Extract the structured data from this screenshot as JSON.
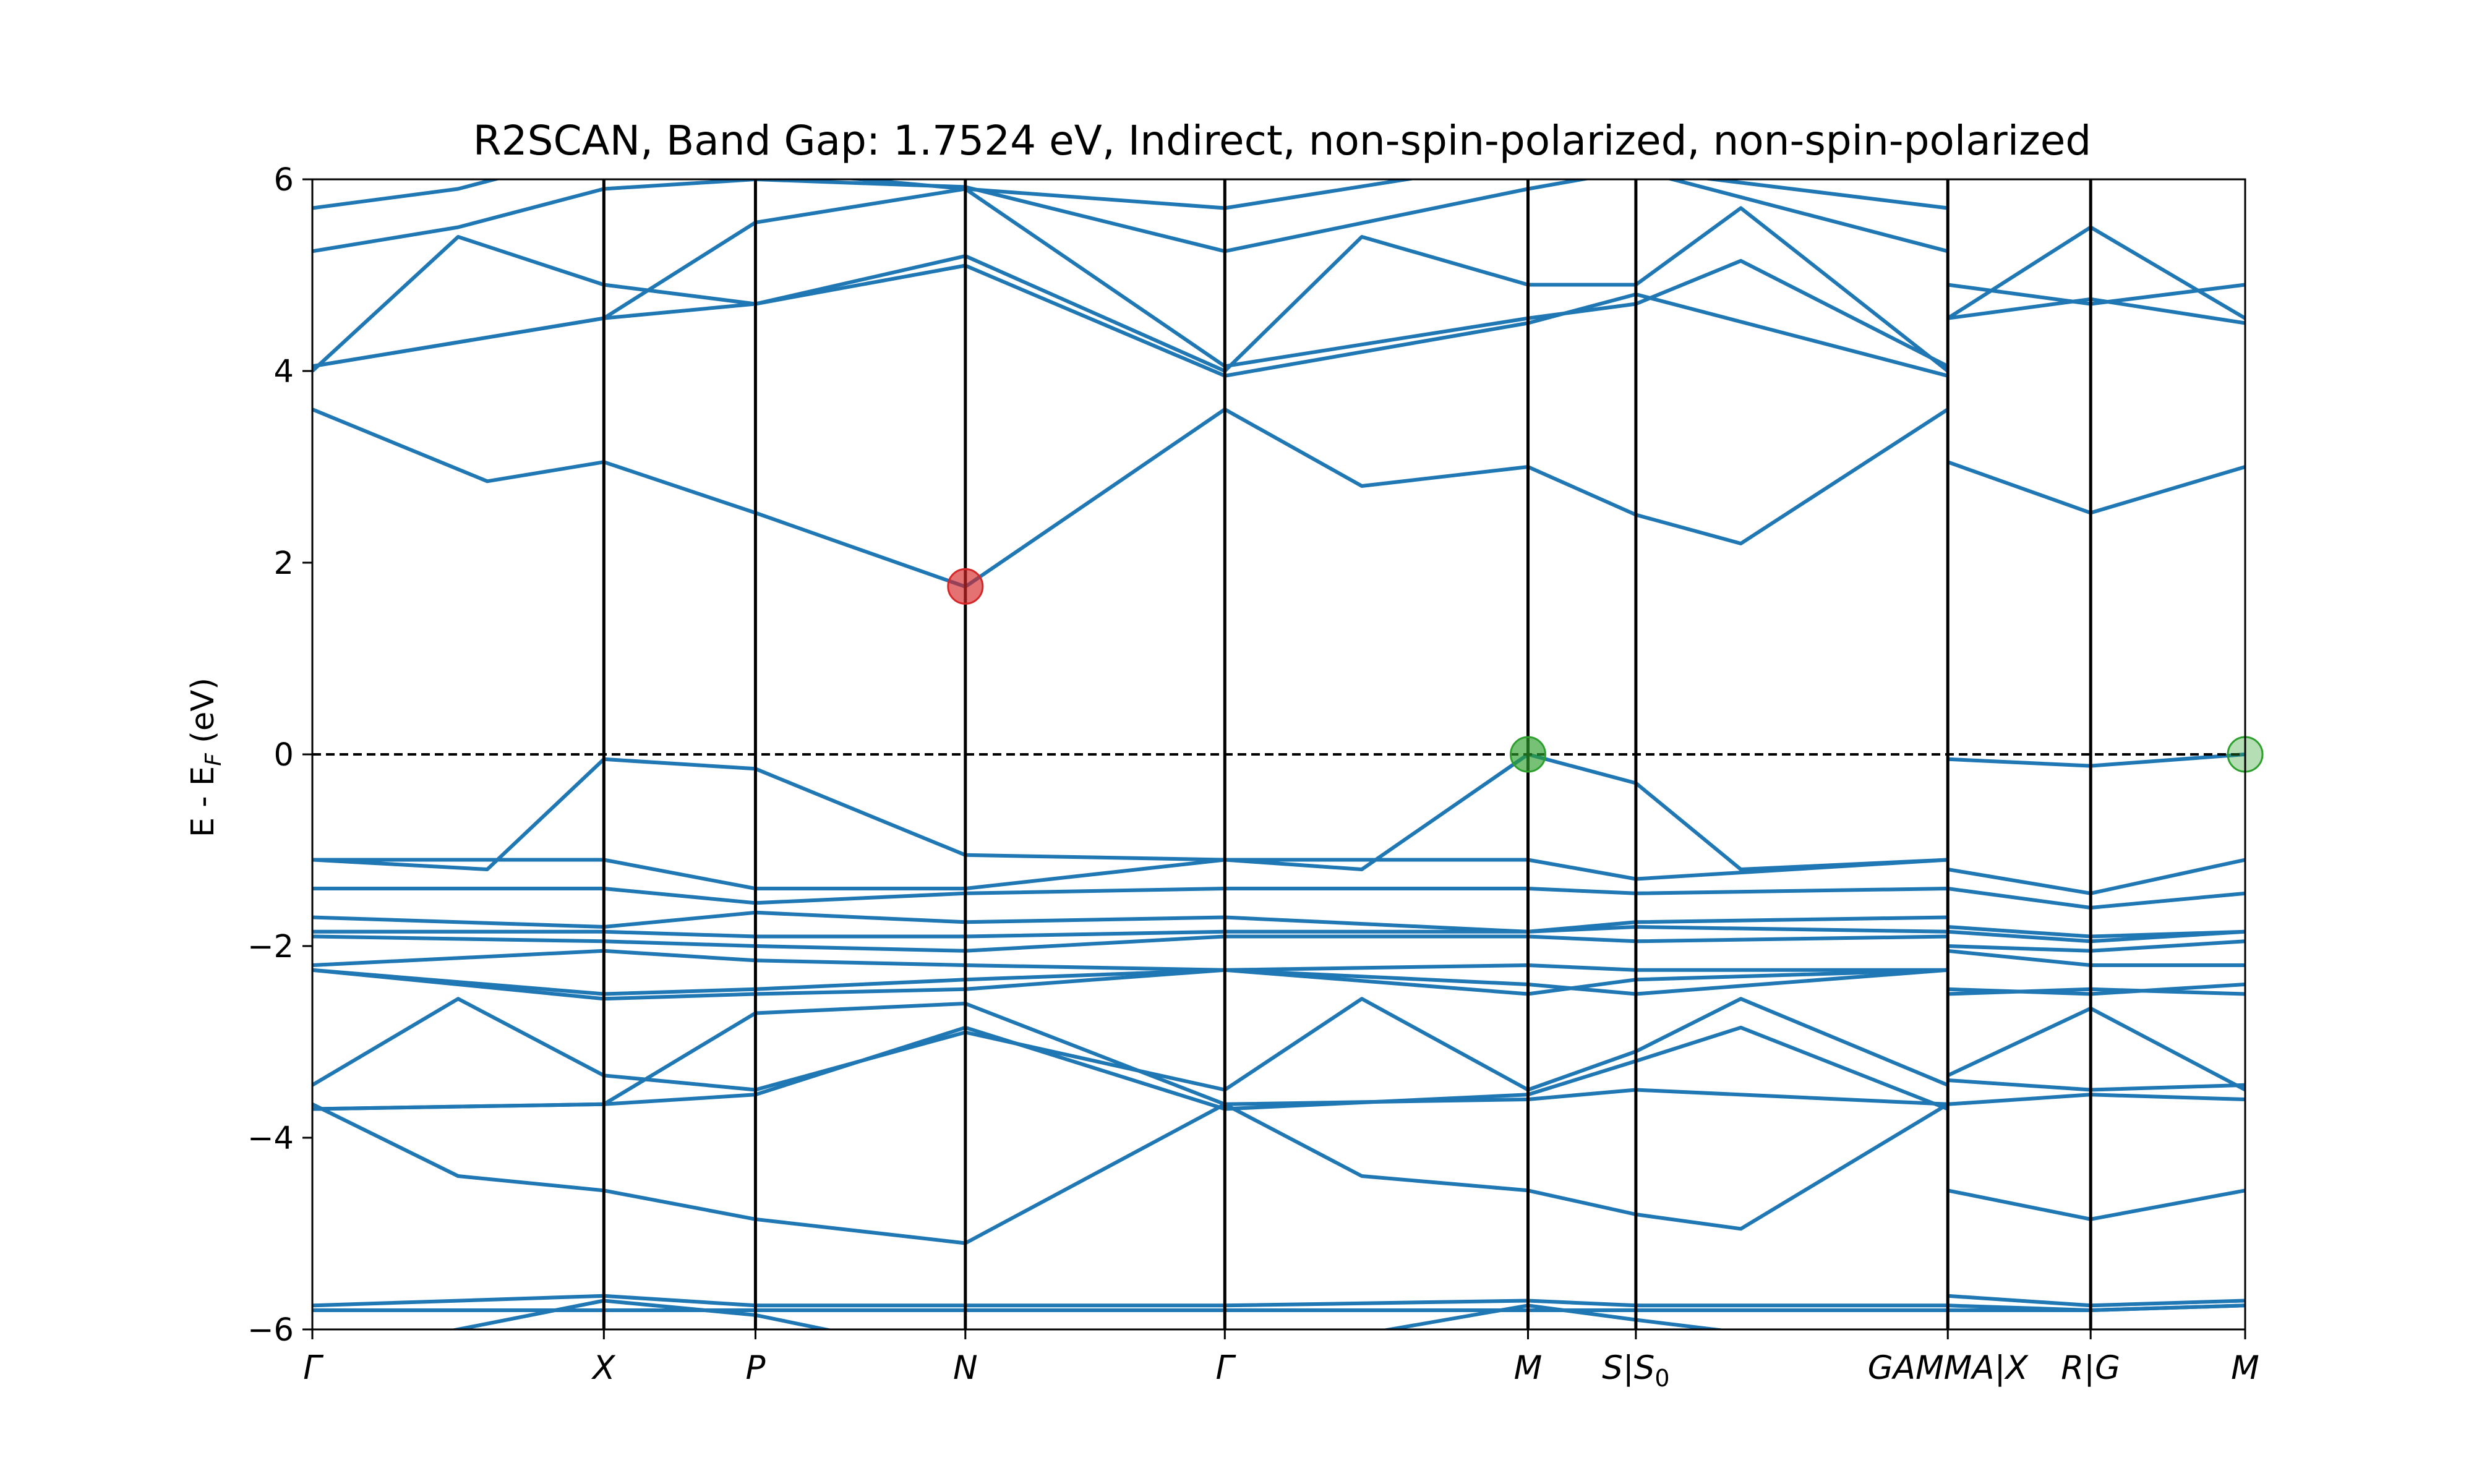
{
  "chart_data": {
    "type": "line",
    "title": "R2SCAN, Band Gap: 1.7524 eV, Indirect, non-spin-polarized, non-spin-polarized",
    "ylabel": "E - E_F (eV)",
    "ylim": [
      -6,
      6
    ],
    "yticks": [
      -6,
      -4,
      -2,
      0,
      2,
      4,
      6
    ],
    "ytick_labels": [
      "−6",
      "−4",
      "−2",
      "0",
      "2",
      "4",
      "6"
    ],
    "fermi_level": 0,
    "kpath": {
      "ticks": [
        {
          "pos": 0.0,
          "label": "Γ"
        },
        {
          "pos": 1.0,
          "label": "X"
        },
        {
          "pos": 1.52,
          "label": "P"
        },
        {
          "pos": 2.24,
          "label": "N"
        },
        {
          "pos": 3.13,
          "label": "Γ"
        },
        {
          "pos": 4.17,
          "label": "M"
        },
        {
          "pos": 4.54,
          "label": "S|S0"
        },
        {
          "pos": 5.61,
          "label": "GAMMA|X"
        },
        {
          "pos": 6.1,
          "label": "R|G"
        },
        {
          "pos": 6.63,
          "label": "M"
        }
      ]
    },
    "cbm": {
      "k": 2.24,
      "e": 1.7524
    },
    "vbm": [
      {
        "k": 4.17,
        "e": 0.0
      },
      {
        "k": 6.63,
        "e": 0.0
      }
    ],
    "bands_colour": "#1f77b4",
    "cbm_colour": "#d62728",
    "vbm_colour": "#2ca02c",
    "bands": [
      [
        [
          0,
          5.7
        ],
        [
          0.5,
          5.9
        ],
        [
          1,
          6.3
        ],
        [
          1.52,
          6.1
        ],
        [
          2.24,
          5.9
        ],
        [
          3.13,
          5.7
        ],
        [
          4.17,
          6.2
        ],
        [
          4.54,
          6.1
        ],
        [
          5.61,
          5.7
        ]
      ],
      [
        [
          0,
          5.25
        ],
        [
          0.5,
          5.5
        ],
        [
          1,
          5.9
        ],
        [
          1.52,
          6.0
        ],
        [
          2.24,
          5.92
        ],
        [
          3.13,
          5.25
        ],
        [
          4.17,
          5.9
        ],
        [
          4.54,
          6.1
        ],
        [
          5.61,
          5.25
        ]
      ],
      [
        [
          0,
          4.0
        ],
        [
          0.5,
          5.4
        ],
        [
          1,
          4.9
        ],
        [
          1.52,
          4.7
        ],
        [
          2.24,
          5.2
        ],
        [
          3.13,
          4.0
        ],
        [
          3.6,
          5.4
        ],
        [
          4.17,
          4.9
        ],
        [
          4.54,
          4.9
        ],
        [
          4.9,
          5.7
        ],
        [
          5.61,
          4.0
        ],
        [
          5.61,
          4.9
        ],
        [
          6.1,
          4.7
        ],
        [
          6.63,
          4.9
        ]
      ],
      [
        [
          0,
          4.05
        ],
        [
          0.5,
          4.3
        ],
        [
          1,
          4.55
        ],
        [
          1.52,
          5.55
        ],
        [
          2.24,
          5.9
        ],
        [
          3.13,
          4.05
        ],
        [
          4.17,
          4.55
        ],
        [
          4.54,
          4.7
        ],
        [
          4.9,
          5.15
        ],
        [
          5.61,
          4.05
        ],
        [
          5.61,
          4.55
        ],
        [
          6.1,
          5.5
        ],
        [
          6.63,
          4.55
        ]
      ],
      [
        [
          0,
          4.05
        ],
        [
          0.5,
          4.3
        ],
        [
          1,
          4.55
        ],
        [
          1.52,
          4.7
        ],
        [
          2.24,
          5.1
        ],
        [
          3.13,
          3.95
        ],
        [
          4.17,
          4.5
        ],
        [
          4.54,
          4.8
        ],
        [
          5.61,
          3.95
        ],
        [
          5.61,
          4.55
        ],
        [
          6.1,
          4.75
        ],
        [
          6.63,
          4.5
        ]
      ],
      [
        [
          0,
          3.6
        ],
        [
          0.6,
          2.85
        ],
        [
          1,
          3.05
        ],
        [
          1.52,
          2.52
        ],
        [
          2.24,
          1.75
        ],
        [
          3.13,
          3.6
        ],
        [
          3.6,
          2.8
        ],
        [
          4.17,
          3.0
        ],
        [
          4.54,
          2.5
        ],
        [
          4.9,
          2.2
        ],
        [
          5.61,
          3.6
        ],
        [
          5.61,
          3.05
        ],
        [
          6.1,
          2.52
        ],
        [
          6.63,
          3.0
        ]
      ],
      [
        [
          0,
          -1.1
        ],
        [
          0.6,
          -1.2
        ],
        [
          1,
          -0.05
        ],
        [
          1.52,
          -0.15
        ],
        [
          2.24,
          -1.05
        ],
        [
          3.13,
          -1.1
        ],
        [
          3.6,
          -1.2
        ],
        [
          4.17,
          0.0
        ],
        [
          4.54,
          -0.3
        ],
        [
          4.9,
          -1.2
        ],
        [
          5.61,
          -1.1
        ],
        [
          5.61,
          -0.05
        ],
        [
          6.1,
          -0.12
        ],
        [
          6.63,
          0.0
        ]
      ],
      [
        [
          0,
          -1.1
        ],
        [
          1,
          -1.1
        ],
        [
          1.52,
          -1.4
        ],
        [
          2.24,
          -1.4
        ],
        [
          3.13,
          -1.1
        ],
        [
          4.17,
          -1.1
        ],
        [
          4.54,
          -1.3
        ],
        [
          5.61,
          -1.1
        ],
        [
          5.61,
          -1.2
        ],
        [
          6.1,
          -1.45
        ],
        [
          6.63,
          -1.1
        ]
      ],
      [
        [
          0,
          -1.4
        ],
        [
          1,
          -1.4
        ],
        [
          1.52,
          -1.55
        ],
        [
          2.24,
          -1.45
        ],
        [
          3.13,
          -1.4
        ],
        [
          4.17,
          -1.4
        ],
        [
          4.54,
          -1.45
        ],
        [
          5.61,
          -1.4
        ],
        [
          5.61,
          -1.4
        ],
        [
          6.1,
          -1.6
        ],
        [
          6.63,
          -1.45
        ]
      ],
      [
        [
          0,
          -1.7
        ],
        [
          1,
          -1.8
        ],
        [
          1.52,
          -1.65
        ],
        [
          2.24,
          -1.75
        ],
        [
          3.13,
          -1.7
        ],
        [
          4.17,
          -1.85
        ],
        [
          4.54,
          -1.75
        ],
        [
          5.61,
          -1.7
        ],
        [
          5.61,
          -1.8
        ],
        [
          6.1,
          -1.9
        ],
        [
          6.63,
          -1.85
        ]
      ],
      [
        [
          0,
          -1.85
        ],
        [
          1,
          -1.85
        ],
        [
          1.52,
          -1.9
        ],
        [
          2.24,
          -1.9
        ],
        [
          3.13,
          -1.85
        ],
        [
          4.17,
          -1.85
        ],
        [
          4.54,
          -1.8
        ],
        [
          5.61,
          -1.85
        ],
        [
          5.61,
          -1.85
        ],
        [
          6.1,
          -1.95
        ],
        [
          6.63,
          -1.85
        ]
      ],
      [
        [
          0,
          -1.9
        ],
        [
          1,
          -1.95
        ],
        [
          1.52,
          -2.0
        ],
        [
          2.24,
          -2.05
        ],
        [
          3.13,
          -1.9
        ],
        [
          4.17,
          -1.9
        ],
        [
          4.54,
          -1.95
        ],
        [
          5.61,
          -1.9
        ],
        [
          5.61,
          -2.0
        ],
        [
          6.1,
          -2.05
        ],
        [
          6.63,
          -1.95
        ]
      ],
      [
        [
          0,
          -2.2
        ],
        [
          1,
          -2.05
        ],
        [
          1.52,
          -2.15
        ],
        [
          2.24,
          -2.2
        ],
        [
          3.13,
          -2.25
        ],
        [
          4.17,
          -2.2
        ],
        [
          4.54,
          -2.25
        ],
        [
          5.61,
          -2.25
        ],
        [
          5.61,
          -2.05
        ],
        [
          6.1,
          -2.2
        ],
        [
          6.63,
          -2.2
        ]
      ],
      [
        [
          0,
          -2.25
        ],
        [
          1,
          -2.5
        ],
        [
          1.52,
          -2.45
        ],
        [
          2.24,
          -2.35
        ],
        [
          3.13,
          -2.25
        ],
        [
          4.17,
          -2.4
        ],
        [
          4.54,
          -2.5
        ],
        [
          5.61,
          -2.25
        ],
        [
          5.61,
          -2.45
        ],
        [
          6.1,
          -2.5
        ],
        [
          6.63,
          -2.4
        ]
      ],
      [
        [
          0,
          -2.25
        ],
        [
          1,
          -2.55
        ],
        [
          1.52,
          -2.5
        ],
        [
          2.24,
          -2.45
        ],
        [
          3.13,
          -2.25
        ],
        [
          4.17,
          -2.5
        ],
        [
          4.54,
          -2.35
        ],
        [
          5.61,
          -2.25
        ],
        [
          5.61,
          -2.5
        ],
        [
          6.1,
          -2.45
        ],
        [
          6.63,
          -2.5
        ]
      ],
      [
        [
          0,
          -3.45
        ],
        [
          0.5,
          -2.55
        ],
        [
          1,
          -3.35
        ],
        [
          1.52,
          -3.5
        ],
        [
          2.24,
          -2.9
        ],
        [
          3.13,
          -3.5
        ],
        [
          3.6,
          -2.55
        ],
        [
          4.17,
          -3.5
        ],
        [
          4.54,
          -3.1
        ],
        [
          4.9,
          -2.55
        ],
        [
          5.61,
          -3.45
        ],
        [
          5.61,
          -3.35
        ],
        [
          6.1,
          -2.65
        ],
        [
          6.63,
          -3.5
        ]
      ],
      [
        [
          0,
          -3.7
        ],
        [
          1,
          -3.65
        ],
        [
          1.52,
          -2.7
        ],
        [
          2.24,
          -2.6
        ],
        [
          3.13,
          -3.65
        ],
        [
          4.17,
          -3.6
        ],
        [
          4.54,
          -3.5
        ],
        [
          5.61,
          -3.65
        ],
        [
          5.61,
          -3.65
        ],
        [
          6.1,
          -3.55
        ],
        [
          6.63,
          -3.6
        ]
      ],
      [
        [
          0,
          -3.7
        ],
        [
          1,
          -3.65
        ],
        [
          1.52,
          -3.55
        ],
        [
          2.24,
          -2.85
        ],
        [
          3.13,
          -3.7
        ],
        [
          4.17,
          -3.55
        ],
        [
          4.54,
          -3.2
        ],
        [
          4.9,
          -2.85
        ],
        [
          5.61,
          -3.7
        ],
        [
          5.61,
          -3.4
        ],
        [
          6.1,
          -3.5
        ],
        [
          6.63,
          -3.45
        ]
      ],
      [
        [
          0,
          -3.65
        ],
        [
          0.5,
          -4.4
        ],
        [
          1,
          -4.55
        ],
        [
          1.52,
          -4.85
        ],
        [
          2.24,
          -5.1
        ],
        [
          3.13,
          -3.65
        ],
        [
          3.6,
          -4.4
        ],
        [
          4.17,
          -4.55
        ],
        [
          4.54,
          -4.8
        ],
        [
          4.9,
          -4.95
        ],
        [
          5.61,
          -3.65
        ],
        [
          5.61,
          -4.55
        ],
        [
          6.1,
          -4.85
        ],
        [
          6.63,
          -4.55
        ]
      ],
      [
        [
          0,
          -5.8
        ],
        [
          1,
          -5.8
        ],
        [
          1.52,
          -5.8
        ],
        [
          2.24,
          -5.8
        ],
        [
          3.13,
          -5.8
        ],
        [
          4.17,
          -5.8
        ],
        [
          4.54,
          -5.8
        ],
        [
          5.61,
          -5.8
        ],
        [
          6.1,
          -5.8
        ],
        [
          6.63,
          -5.75
        ]
      ],
      [
        [
          0,
          -5.75
        ],
        [
          1,
          -5.65
        ],
        [
          1.52,
          -5.75
        ],
        [
          2.24,
          -5.75
        ],
        [
          3.13,
          -5.75
        ],
        [
          4.17,
          -5.7
        ],
        [
          4.54,
          -5.75
        ],
        [
          5.61,
          -5.75
        ],
        [
          5.61,
          -5.65
        ],
        [
          6.1,
          -5.75
        ],
        [
          6.63,
          -5.7
        ]
      ],
      [
        [
          0,
          -6.3
        ],
        [
          0.5,
          -6.0
        ],
        [
          1,
          -5.7
        ],
        [
          1.52,
          -5.85
        ],
        [
          2.24,
          -6.3
        ],
        [
          3.13,
          -6.3
        ],
        [
          4.17,
          -5.75
        ],
        [
          4.54,
          -5.9
        ],
        [
          5.61,
          -6.3
        ],
        [
          5.61,
          -5.75
        ],
        [
          6.1,
          -5.8
        ],
        [
          6.63,
          -5.75
        ]
      ]
    ]
  }
}
